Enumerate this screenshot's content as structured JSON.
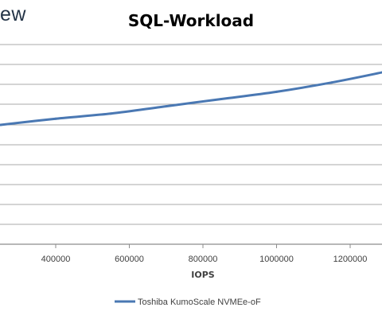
{
  "brand_fragment": "ew",
  "colors": {
    "series_line": "#4a78b3",
    "gridline": "#8c8c8c",
    "axis_text": "#404040",
    "title_text": "#000000",
    "brand_text": "#243447"
  },
  "chart_data": {
    "type": "line",
    "title": "SQL-Workload",
    "xlabel": "IOPS",
    "ylabel": "",
    "x_ticks": [
      400000,
      600000,
      800000,
      1000000,
      1200000
    ],
    "x_tick_labels": [
      "400000",
      "600000",
      "800000",
      "1000000",
      "1200000"
    ],
    "xlim": [
      250000,
      1290000
    ],
    "grid": true,
    "legend_position": "bottom",
    "series": [
      {
        "name": "Toshiba KumoScale NVMEe-oF",
        "x": [
          250000,
          400000,
          550000,
          700000,
          850000,
          1000000,
          1150000,
          1290000
        ],
        "y": [
          2.0,
          2.3,
          2.55,
          2.9,
          3.25,
          3.6,
          4.05,
          4.55
        ]
      }
    ]
  }
}
